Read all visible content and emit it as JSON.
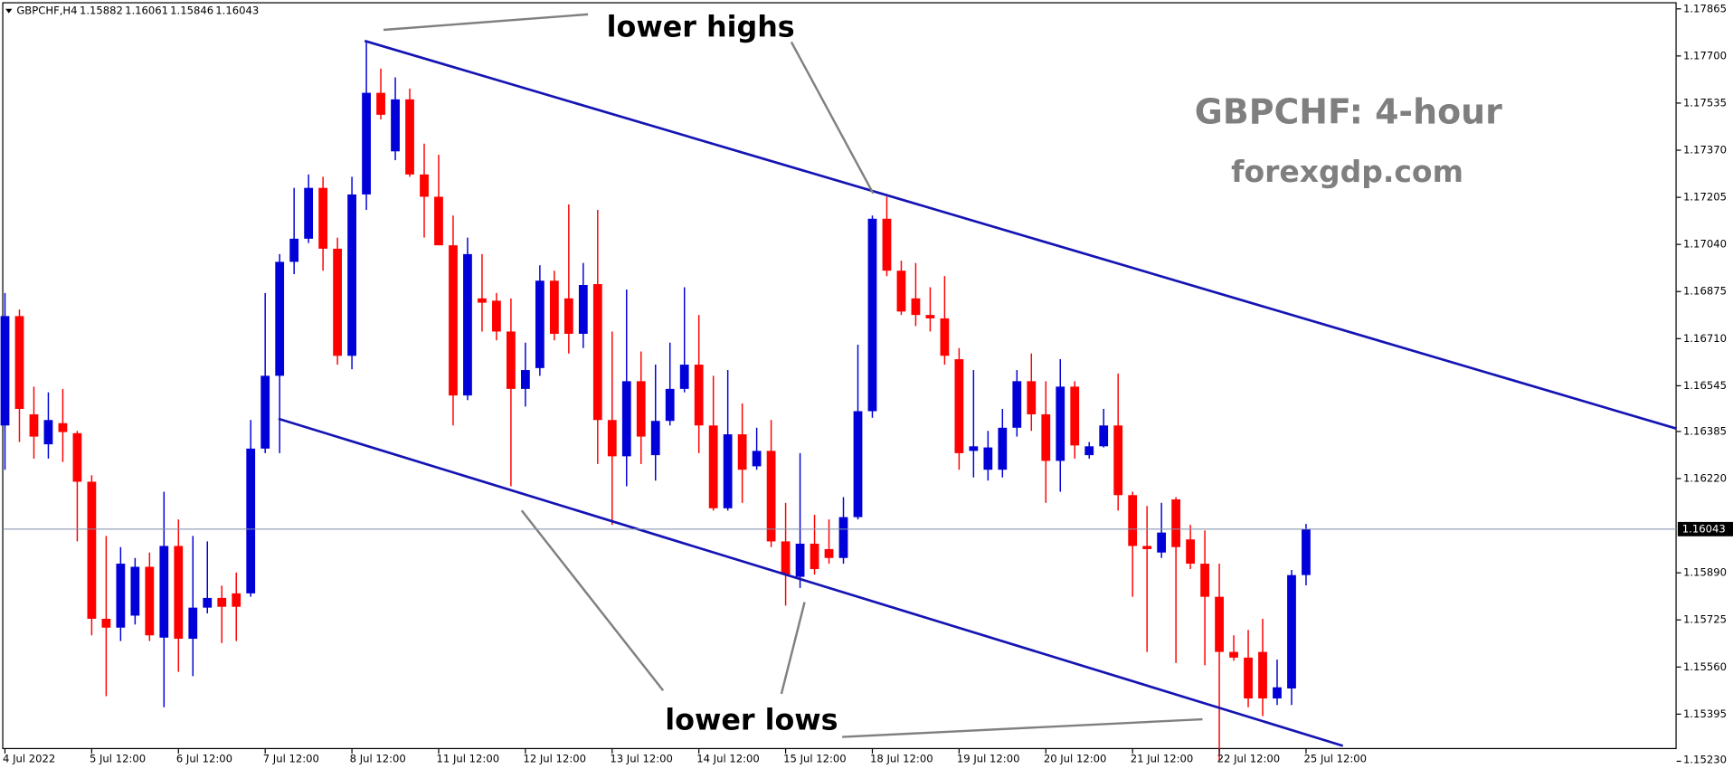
{
  "chart_data": {
    "type": "candlestick",
    "symbol": "GBPCHF,H4",
    "title": "GBPCHF: 4-hour",
    "subtitle": "forexgdp.com",
    "annotations": [
      "lower highs",
      "lower lows"
    ],
    "up_color": "#0000d8",
    "down_color": "#ff0000",
    "categories": [
      "4 Jul 2022",
      null,
      null,
      null,
      null,
      null,
      "5 Jul 12:00",
      null,
      null,
      null,
      null,
      null,
      "6 Jul 12:00",
      null,
      null,
      null,
      null,
      null,
      "7 Jul 12:00",
      null,
      null,
      null,
      null,
      null,
      "8 Jul 12:00",
      null,
      null,
      null,
      null,
      null,
      "11 Jul 12:00",
      null,
      null,
      null,
      null,
      null,
      "12 Jul 12:00",
      null,
      null,
      null,
      null,
      null,
      "13 Jul 12:00",
      null,
      null,
      null,
      null,
      null,
      "14 Jul 12:00",
      null,
      null,
      null,
      null,
      null,
      "15 Jul 12:00",
      null,
      null,
      null,
      null,
      null,
      "18 Jul 12:00",
      null,
      null,
      null,
      null,
      null,
      "19 Jul 12:00",
      null,
      null,
      null,
      null,
      null,
      "20 Jul 12:00",
      null,
      null,
      null,
      null,
      null,
      "21 Jul 12:00",
      null,
      null,
      null,
      null,
      null,
      "22 Jul 12:00",
      null,
      null,
      null,
      null,
      null,
      "25 Jul 12:00"
    ],
    "open": [
      1.16406,
      1.16789,
      1.16445,
      1.1634,
      1.16414,
      1.16379,
      1.16209,
      1.15729,
      1.15698,
      1.1574,
      1.15911,
      1.15663,
      1.15984,
      1.15659,
      1.15768,
      1.15802,
      1.15818,
      1.15818,
      1.16325,
      1.1658,
      1.16979,
      1.1706,
      1.17238,
      1.17025,
      1.1665,
      1.17215,
      1.17571,
      1.17366,
      1.17548,
      1.17285,
      1.17207,
      1.17037,
      1.16511,
      1.16851,
      1.16843,
      1.16735,
      1.16534,
      1.16607,
      1.16913,
      1.16851,
      1.16727,
      1.16901,
      1.16425,
      1.16298,
      1.16561,
      1.16302,
      1.16422,
      1.16534,
      1.16619,
      1.16406,
      1.16116,
      1.16375,
      1.16263,
      1.16317,
      1.16,
      1.15876,
      1.15992,
      1.15973,
      1.15942,
      1.16085,
      1.16456,
      1.1713,
      1.16948,
      1.16851,
      1.16793,
      1.16781,
      1.16638,
      1.16317,
      1.16251,
      1.16251,
      1.16398,
      1.16561,
      1.16445,
      1.16282,
      1.16542,
      1.16302,
      1.16333,
      1.16406,
      1.16162,
      1.15984,
      1.15961,
      1.16147,
      1.16007,
      1.15922,
      1.15806,
      1.15613,
      1.15593,
      1.15613,
      1.1545,
      1.15485,
      1.15882
    ],
    "high": [
      1.1687,
      1.16812,
      1.16542,
      1.16522,
      1.16534,
      1.16387,
      1.16232,
      1.16019,
      1.1598,
      1.15942,
      1.15961,
      1.16174,
      1.16077,
      1.16019,
      1.16,
      1.15845,
      1.15891,
      1.16425,
      1.1687,
      1.17006,
      1.17238,
      1.17285,
      1.17277,
      1.17064,
      1.17277,
      1.17753,
      1.17656,
      1.17625,
      1.17586,
      1.17393,
      1.17354,
      1.17141,
      1.17064,
      1.17006,
      1.1687,
      1.16851,
      1.16696,
      1.16967,
      1.16948,
      1.1718,
      1.16975,
      1.17161,
      1.16735,
      1.16882,
      1.16665,
      1.16619,
      1.16696,
      1.1689,
      1.16793,
      1.1658,
      1.166,
      1.16483,
      1.16398,
      1.16425,
      1.16135,
      1.16309,
      1.16093,
      1.16077,
      1.16155,
      1.16689,
      1.17141,
      1.17207,
      1.16983,
      1.16975,
      1.1689,
      1.16929,
      1.16677,
      1.166,
      1.16387,
      1.16464,
      1.166,
      1.16658,
      1.16561,
      1.16638,
      1.16561,
      1.16348,
      1.16464,
      1.16588,
      1.16174,
      1.16124,
      1.16135,
      1.16155,
      1.16058,
      1.16038,
      1.15922,
      1.15671,
      1.1569,
      1.15729,
      1.15586,
      1.159,
      1.16061
    ],
    "low": [
      1.16251,
      1.16348,
      1.1629,
      1.1629,
      1.16278,
      1.16,
      1.15671,
      1.15458,
      1.15651,
      1.15709,
      1.15651,
      1.15419,
      1.15543,
      1.15528,
      1.15748,
      1.15644,
      1.15651,
      1.15806,
      1.16309,
      1.16309,
      1.16936,
      1.17045,
      1.16948,
      1.16619,
      1.16603,
      1.17161,
      1.17478,
      1.17335,
      1.17277,
      1.17064,
      1.17037,
      1.16406,
      1.16495,
      1.16735,
      1.16704,
      1.16193,
      1.16472,
      1.1658,
      1.16704,
      1.16658,
      1.16677,
      1.16271,
      1.16058,
      1.16193,
      1.16271,
      1.16213,
      1.16406,
      1.16522,
      1.16309,
      1.16108,
      1.16108,
      1.16135,
      1.16251,
      1.1598,
      1.15775,
      1.15837,
      1.15884,
      1.15922,
      1.15922,
      1.16077,
      1.16433,
      1.16929,
      1.16793,
      1.16754,
      1.16735,
      1.16619,
      1.16251,
      1.16224,
      1.16213,
      1.16224,
      1.16367,
      1.16387,
      1.16135,
      1.16174,
      1.1629,
      1.1629,
      1.16329,
      1.16108,
      1.15806,
      1.15613,
      1.15942,
      1.15574,
      1.15903,
      1.15566,
      1.15233,
      1.15582,
      1.15419,
      1.15388,
      1.15427,
      1.15427,
      1.15846
    ],
    "close": [
      1.16789,
      1.16464,
      1.16367,
      1.16425,
      1.16383,
      1.16209,
      1.15729,
      1.15698,
      1.15922,
      1.15911,
      1.15671,
      1.15984,
      1.15659,
      1.15768,
      1.15802,
      1.15771,
      1.15771,
      1.16325,
      1.1658,
      1.16979,
      1.1706,
      1.17238,
      1.17025,
      1.1665,
      1.17215,
      1.17571,
      1.17494,
      1.17548,
      1.17285,
      1.17207,
      1.17037,
      1.16511,
      1.17006,
      1.16836,
      1.16735,
      1.16534,
      1.166,
      1.16913,
      1.16727,
      1.16727,
      1.16898,
      1.16425,
      1.16298,
      1.16561,
      1.16367,
      1.16422,
      1.16534,
      1.16619,
      1.16406,
      1.16116,
      1.16375,
      1.16251,
      1.16317,
      1.16,
      1.15884,
      1.15992,
      1.15903,
      1.15942,
      1.16085,
      1.16456,
      1.1713,
      1.16948,
      1.16805,
      1.16793,
      1.16781,
      1.1665,
      1.16309,
      1.16333,
      1.16329,
      1.16398,
      1.16561,
      1.16445,
      1.16282,
      1.16542,
      1.16336,
      1.16333,
      1.16406,
      1.16162,
      1.15984,
      1.15973,
      1.16031,
      1.1598,
      1.15922,
      1.15806,
      1.15613,
      1.15593,
      1.1545,
      1.1545,
      1.15489,
      1.15882,
      1.16043
    ],
    "ylim": [
      1.1523,
      1.17896
    ],
    "yticks": [
      1.17865,
      {
        "value": 1.177,
        "label": "1.17700"
      },
      1.17535,
      {
        "value": 1.1737,
        "label": "1.17370"
      },
      1.17205,
      {
        "value": 1.1704,
        "label": "1.17040"
      },
      1.16875,
      {
        "value": 1.1671,
        "label": "1.16710"
      },
      1.16545,
      1.16385,
      {
        "value": 1.1622,
        "label": "1.16220"
      },
      {
        "value": 1.1589,
        "label": "1.15890"
      },
      1.15725,
      {
        "value": 1.1556,
        "label": "1.15560"
      },
      1.15395,
      {
        "value": 1.1523,
        "label": "1.15230"
      }
    ]
  }
}
